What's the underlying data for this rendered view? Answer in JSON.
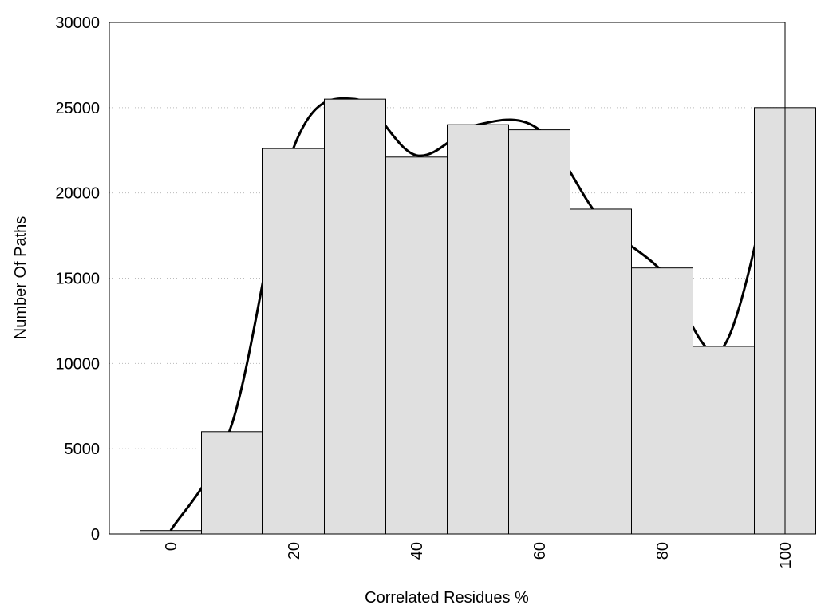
{
  "chart_data": {
    "type": "histogram",
    "xlabel": "Correlated Residues %",
    "ylabel": "Number Of Paths",
    "bins": [
      -5,
      5,
      15,
      25,
      35,
      45,
      55,
      65,
      75,
      85,
      95,
      105
    ],
    "values": [
      200,
      6000,
      22600,
      25500,
      22100,
      24000,
      23700,
      19050,
      15600,
      11000,
      25000
    ],
    "color": "#e0e0e0",
    "edgecolor": "#000000",
    "xlim": [
      -10,
      100
    ],
    "xticks": [
      0,
      20,
      40,
      60,
      80,
      100
    ],
    "ylim": [
      0,
      30000
    ],
    "yticks": [
      0,
      5000,
      10000,
      15000,
      20000,
      25000,
      30000
    ],
    "grid": true,
    "overlay": {
      "type": "line",
      "smooth": true,
      "color": "#000000",
      "x": [
        0,
        10,
        20,
        30,
        40,
        50,
        60,
        70,
        80,
        90,
        100
      ],
      "values": [
        200,
        6500,
        22650,
        25500,
        22200,
        24000,
        23700,
        18450,
        15400,
        11000,
        25000
      ]
    }
  }
}
